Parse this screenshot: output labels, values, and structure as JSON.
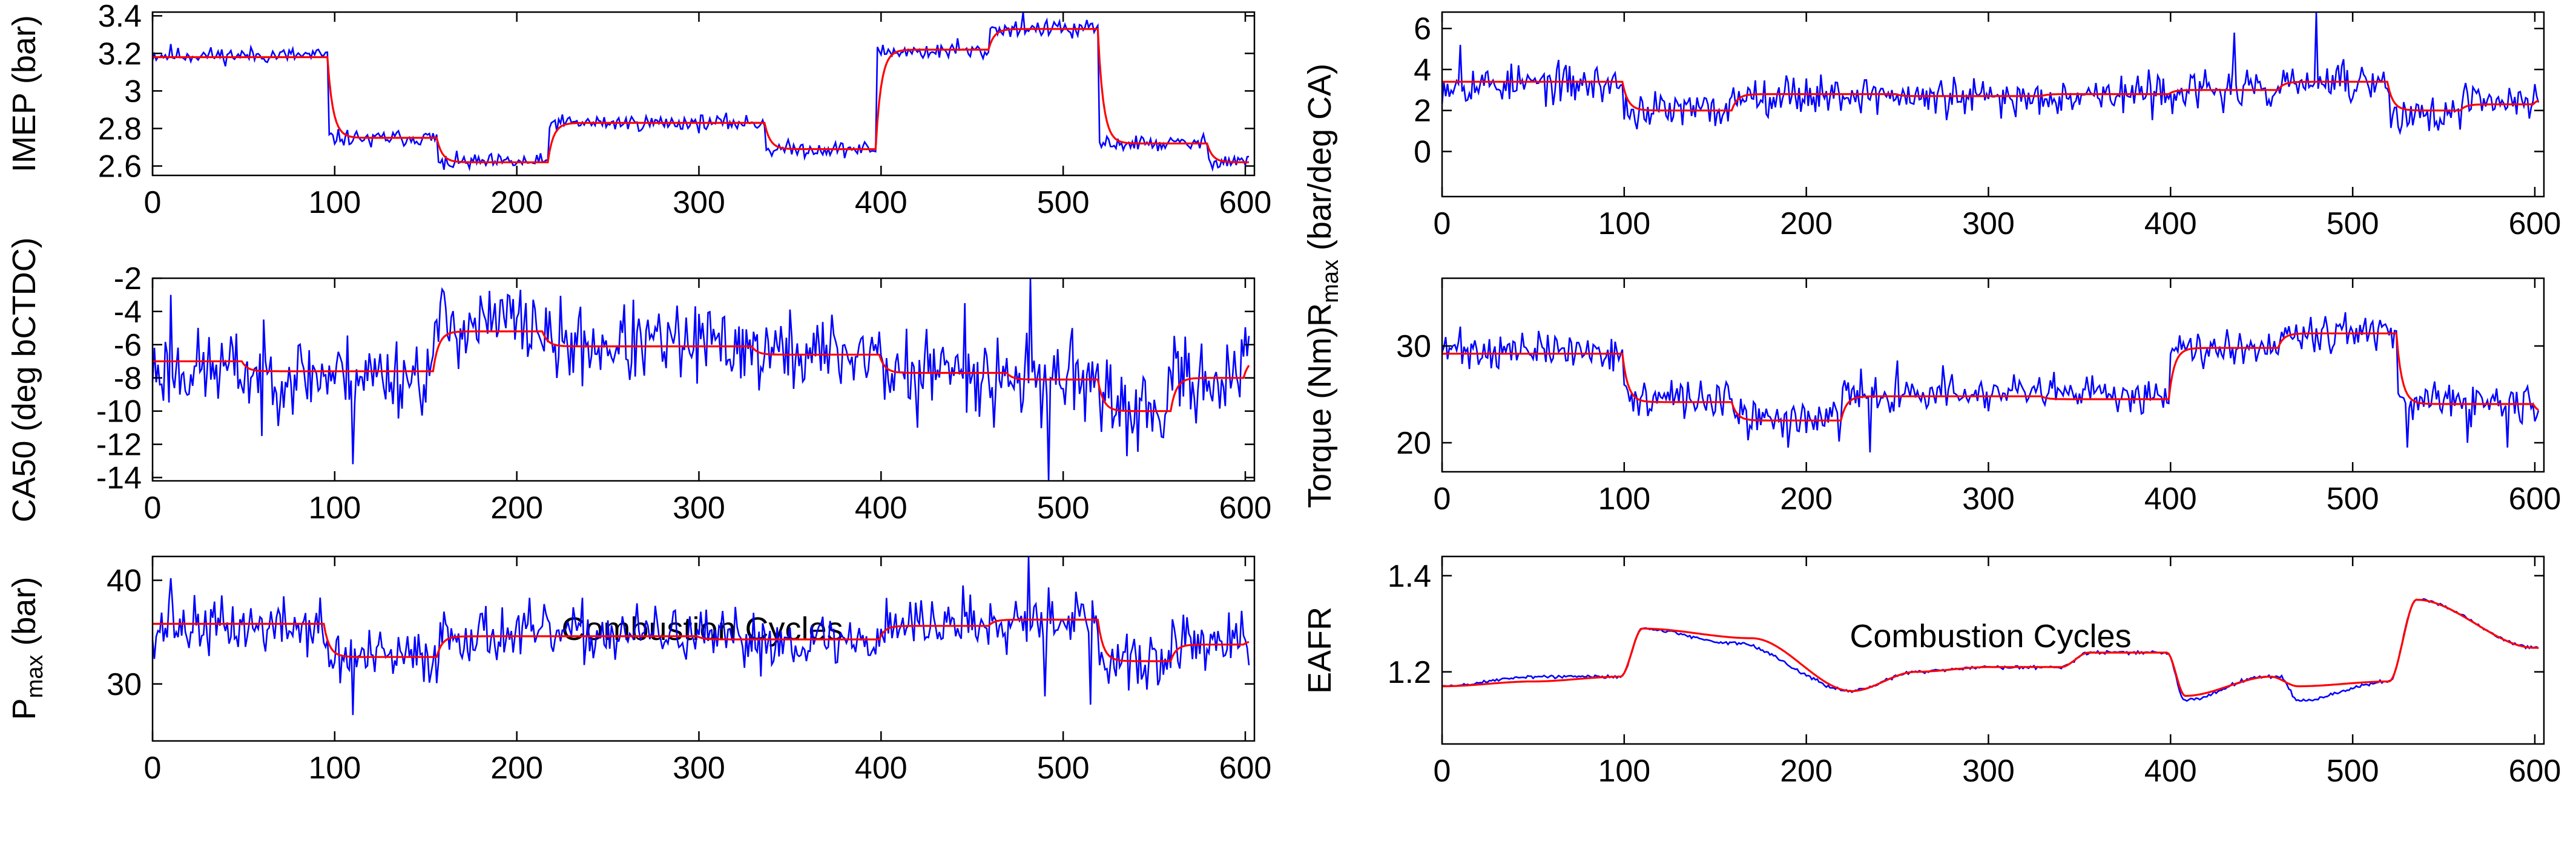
{
  "figure": {
    "xlabel_left": "Combustion Cycles",
    "xlabel_right": "Combustion Cycles"
  },
  "colors": {
    "measured": "#0000ff",
    "estimated": "#ff0000",
    "axis": "#000000"
  },
  "chart_data": [
    {
      "id": "imep",
      "type": "line",
      "ylabel": "IMEP (bar)",
      "xlim": [
        0,
        605
      ],
      "ylim": [
        2.55,
        3.42
      ],
      "xticks": [
        0,
        100,
        200,
        300,
        400,
        500,
        600
      ],
      "yticks": [
        "2.6",
        "2.8",
        "3",
        "3.2",
        "3.4"
      ],
      "noise": 0.025,
      "seed": 11,
      "series": [
        {
          "name": "measured",
          "steps": [
            [
              0,
              3.19
            ],
            [
              97,
              2.75
            ],
            [
              157,
              2.62
            ],
            [
              218,
              2.83
            ],
            [
              337,
              2.69
            ],
            [
              398,
              3.21
            ],
            [
              460,
              3.33
            ],
            [
              520,
              2.72
            ],
            [
              580,
              2.63
            ]
          ],
          "spikes": [
            [
              10,
              3.25
            ],
            [
              120,
              2.7
            ],
            [
              160,
              2.58
            ],
            [
              442,
              3.28
            ],
            [
              478,
              3.42
            ],
            [
              498,
              3.37
            ],
            [
              505,
              3.28
            ],
            [
              590,
              2.6
            ]
          ]
        },
        {
          "name": "estimated",
          "steps": [
            [
              0,
              3.18
            ],
            [
              97,
              2.75
            ],
            [
              157,
              2.62
            ],
            [
              218,
              2.83
            ],
            [
              337,
              2.69
            ],
            [
              398,
              3.22
            ],
            [
              460,
              3.33
            ],
            [
              520,
              2.72
            ],
            [
              580,
              2.62
            ]
          ]
        }
      ]
    },
    {
      "id": "ca50",
      "type": "line",
      "ylabel": "CA50 (deg bCTDC)",
      "xlim": [
        0,
        605
      ],
      "ylim": [
        -14.2,
        -2
      ],
      "xticks": [
        0,
        100,
        200,
        300,
        400,
        500,
        600
      ],
      "yticks": [
        "-14",
        "-12",
        "-10",
        "-8",
        "-6",
        "-4",
        "-2"
      ],
      "noise": 1.4,
      "seed": 23,
      "series": [
        {
          "name": "measured",
          "steps": [
            [
              0,
              -7.5
            ],
            [
              50,
              -7.8
            ],
            [
              155,
              -4.8
            ],
            [
              215,
              -6.0
            ],
            [
              330,
              -6.5
            ],
            [
              400,
              -7.6
            ],
            [
              470,
              -8.0
            ],
            [
              520,
              -10.0
            ],
            [
              560,
              -8.0
            ],
            [
              600,
              -6.5
            ]
          ],
          "spikes": [
            [
              10,
              -3.0
            ],
            [
              60,
              -11.5
            ],
            [
              110,
              -13.2
            ],
            [
              195,
              -3.0
            ],
            [
              420,
              -11.0
            ],
            [
              446,
              -3.5
            ],
            [
              462,
              -11.0
            ],
            [
              482,
              -2.0
            ],
            [
              492,
              -14.2
            ],
            [
              505,
              -5.0
            ]
          ]
        },
        {
          "name": "estimated",
          "steps": [
            [
              0,
              -7.0
            ],
            [
              50,
              -7.6
            ],
            [
              155,
              -5.2
            ],
            [
              215,
              -6.1
            ],
            [
              330,
              -6.6
            ],
            [
              400,
              -7.7
            ],
            [
              470,
              -8.1
            ],
            [
              520,
              -10.0
            ],
            [
              560,
              -8.0
            ],
            [
              600,
              -6.8
            ]
          ]
        }
      ]
    },
    {
      "id": "pmax",
      "type": "line",
      "ylabel": "P",
      "ylabel_sub": "max",
      "ylabel_rest": " (bar)",
      "xlim": [
        0,
        605
      ],
      "ylim": [
        24.5,
        42.3
      ],
      "xticks": [
        0,
        100,
        200,
        300,
        400,
        500,
        600
      ],
      "yticks": [
        "30",
        "40"
      ],
      "noise": 1.6,
      "seed": 37,
      "series": [
        {
          "name": "measured",
          "steps": [
            [
              0,
              35.5
            ],
            [
              95,
              32.5
            ],
            [
              157,
              34.8
            ],
            [
              300,
              34.2
            ],
            [
              400,
              35.8
            ],
            [
              460,
              36.5
            ],
            [
              520,
              32.0
            ],
            [
              560,
              34.0
            ],
            [
              600,
              34.0
            ]
          ],
          "spikes": [
            [
              10,
              40.2
            ],
            [
              110,
              27.0
            ],
            [
              445,
              39.5
            ],
            [
              481,
              42.3
            ],
            [
              490,
              28.8
            ],
            [
              515,
              28.0
            ]
          ]
        },
        {
          "name": "estimated",
          "steps": [
            [
              0,
              35.8
            ],
            [
              95,
              32.6
            ],
            [
              157,
              34.6
            ],
            [
              300,
              34.3
            ],
            [
              400,
              35.6
            ],
            [
              460,
              36.2
            ],
            [
              520,
              32.2
            ],
            [
              560,
              33.8
            ],
            [
              600,
              34.2
            ]
          ]
        }
      ]
    },
    {
      "id": "rmax",
      "type": "line",
      "ylabel": "R",
      "ylabel_sub": "max",
      "ylabel_rest": " (bar/deg CA)",
      "xlim": [
        0,
        605
      ],
      "ylim": [
        -2.2,
        6.8
      ],
      "xticks": [
        0,
        100,
        200,
        300,
        400,
        500,
        600
      ],
      "yticks": [
        "0",
        "2",
        "4",
        "6"
      ],
      "noise": 0.55,
      "seed": 53,
      "series": [
        {
          "name": "measured",
          "steps": [
            [
              0,
              3.3
            ],
            [
              100,
              2.0
            ],
            [
              160,
              2.8
            ],
            [
              250,
              2.6
            ],
            [
              330,
              2.8
            ],
            [
              400,
              3.0
            ],
            [
              460,
              3.3
            ],
            [
              520,
              1.8
            ],
            [
              560,
              2.4
            ],
            [
              600,
              2.6
            ]
          ],
          "spikes": [
            [
              10,
              5.2
            ],
            [
              435,
              5.8
            ],
            [
              450,
              3.0
            ],
            [
              480,
              6.8
            ],
            [
              495,
              4.5
            ]
          ]
        },
        {
          "name": "estimated",
          "steps": [
            [
              0,
              3.4
            ],
            [
              100,
              2.0
            ],
            [
              160,
              2.8
            ],
            [
              250,
              2.7
            ],
            [
              330,
              2.8
            ],
            [
              400,
              3.0
            ],
            [
              460,
              3.4
            ],
            [
              520,
              2.0
            ],
            [
              560,
              2.3
            ],
            [
              600,
              2.6
            ]
          ]
        }
      ]
    },
    {
      "id": "torque",
      "type": "line",
      "ylabel": "Torque (Nm)",
      "xlim": [
        0,
        605
      ],
      "ylim": [
        17,
        37
      ],
      "xticks": [
        0,
        100,
        200,
        300,
        400,
        500,
        600
      ],
      "yticks": [
        "20",
        "30"
      ],
      "noise": 1.1,
      "seed": 71,
      "series": [
        {
          "name": "measured",
          "steps": [
            [
              0,
              29.5
            ],
            [
              100,
              24.5
            ],
            [
              160,
              22.5
            ],
            [
              220,
              25.0
            ],
            [
              300,
              25.0
            ],
            [
              400,
              30.0
            ],
            [
              460,
              31.5
            ],
            [
              525,
              24.0
            ],
            [
              600,
              23.0
            ]
          ],
          "spikes": [
            [
              10,
              32.0
            ],
            [
              190,
              19.5
            ],
            [
              235,
              19.0
            ],
            [
              250,
              28.5
            ],
            [
              275,
              28.0
            ],
            [
              530,
              19.5
            ],
            [
              563,
              20.0
            ],
            [
              585,
              19.5
            ]
          ]
        },
        {
          "name": "estimated",
          "steps": [
            [
              0,
              29.2
            ],
            [
              100,
              24.2
            ],
            [
              160,
              22.3
            ],
            [
              220,
              24.8
            ],
            [
              330,
              24.5
            ],
            [
              400,
              29.8
            ],
            [
              460,
              31.3
            ],
            [
              525,
              24.0
            ],
            [
              600,
              23.0
            ]
          ]
        }
      ]
    },
    {
      "id": "eafr",
      "type": "line",
      "ylabel": "EAFR",
      "xlim": [
        0,
        605
      ],
      "ylim": [
        1.05,
        1.44
      ],
      "xticks": [
        0,
        100,
        200,
        300,
        400,
        500,
        600
      ],
      "yticks": [
        "1.2",
        "1.4"
      ],
      "noise": 0.004,
      "seed": 89,
      "series": [
        {
          "name": "measured",
          "smooth": [
            [
              0,
              1.17
            ],
            [
              50,
              1.19
            ],
            [
              98,
              1.19
            ],
            [
              110,
              1.29
            ],
            [
              160,
              1.26
            ],
            [
              225,
              1.16
            ],
            [
              260,
              1.2
            ],
            [
              300,
              1.21
            ],
            [
              340,
              1.21
            ],
            [
              355,
              1.24
            ],
            [
              398,
              1.24
            ],
            [
              408,
              1.14
            ],
            [
              450,
              1.19
            ],
            [
              460,
              1.19
            ],
            [
              470,
              1.14
            ],
            [
              520,
              1.18
            ],
            [
              535,
              1.35
            ],
            [
              600,
              1.25
            ]
          ]
        },
        {
          "name": "estimated",
          "smooth": [
            [
              0,
              1.17
            ],
            [
              50,
              1.18
            ],
            [
              98,
              1.19
            ],
            [
              110,
              1.29
            ],
            [
              170,
              1.27
            ],
            [
              225,
              1.16
            ],
            [
              260,
              1.2
            ],
            [
              300,
              1.21
            ],
            [
              340,
              1.21
            ],
            [
              355,
              1.24
            ],
            [
              398,
              1.24
            ],
            [
              408,
              1.15
            ],
            [
              455,
              1.19
            ],
            [
              470,
              1.17
            ],
            [
              520,
              1.18
            ],
            [
              535,
              1.35
            ],
            [
              600,
              1.25
            ]
          ]
        }
      ]
    }
  ]
}
